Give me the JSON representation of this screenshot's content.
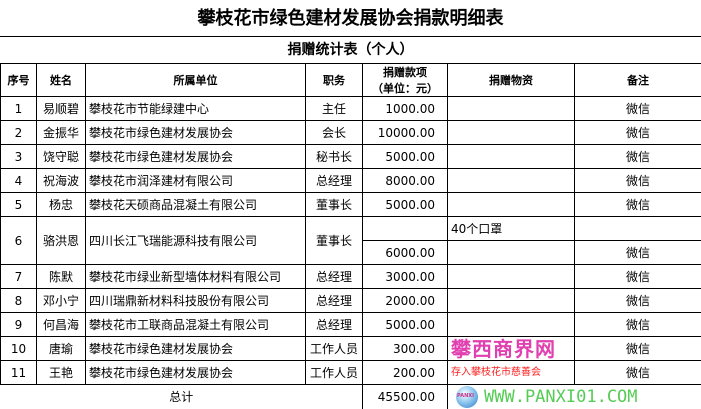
{
  "title": "攀枝花市绿色建材发展协会捐款明细表",
  "subtitle": "捐赠统计表（个人）",
  "headers": {
    "no": "序号",
    "name": "姓名",
    "org": "所属单位",
    "position": "职务",
    "amount": "捐赠款项",
    "amount_unit": "（单位：元）",
    "goods": "捐赠物资",
    "note": "备注"
  },
  "rows": [
    {
      "no": "1",
      "name": "易顺碧",
      "org": "攀枝花市节能绿建中心",
      "position": "主任",
      "amount": "1000.00",
      "goods": "",
      "note": "微信"
    },
    {
      "no": "2",
      "name": "金振华",
      "org": "攀枝花市绿色建材发展协会",
      "position": "会长",
      "amount": "10000.00",
      "goods": "",
      "note": "微信"
    },
    {
      "no": "3",
      "name": "饶守聪",
      "org": "攀枝花市绿色建材发展协会",
      "position": "秘书长",
      "amount": "5000.00",
      "goods": "",
      "note": "微信"
    },
    {
      "no": "4",
      "name": "祝海波",
      "org": "攀枝花市润泽建材有限公司",
      "position": "总经理",
      "amount": "8000.00",
      "goods": "",
      "note": "微信"
    },
    {
      "no": "5",
      "name": "杨忠",
      "org": "攀枝花天硕商品混凝土有限公司",
      "position": "董事长",
      "amount": "5000.00",
      "goods": "",
      "note": "微信"
    },
    {
      "no": "6",
      "name": "骆洪恩",
      "org": "四川长江飞瑞能源科技有限公司",
      "position": "董事长",
      "amount": "6000.00",
      "goods": "40个口罩",
      "note": "微信"
    },
    {
      "no": "7",
      "name": "陈默",
      "org": "攀枝花市绿业新型墙体材料有限公司",
      "position": "总经理",
      "amount": "3000.00",
      "goods": "",
      "note": "微信"
    },
    {
      "no": "8",
      "name": "邓小宁",
      "org": "四川瑞鼎新材料科技股份有限公司",
      "position": "总经理",
      "amount": "2000.00",
      "goods": "",
      "note": "微信"
    },
    {
      "no": "9",
      "name": "何昌海",
      "org": "攀枝花市工联商品混凝土有限公司",
      "position": "总经理",
      "amount": "5000.00",
      "goods": "",
      "note": "微信"
    },
    {
      "no": "10",
      "name": "唐瑜",
      "org": "攀枝花市绿色建材发展协会",
      "position": "工作人员",
      "amount": "300.00",
      "goods": "",
      "note": "微信"
    },
    {
      "no": "11",
      "name": "王艳",
      "org": "攀枝花市绿色建材发展协会",
      "position": "工作人员",
      "amount": "200.00",
      "goods": "",
      "note": "微信"
    }
  ],
  "total": {
    "label": "总计",
    "amount": "45500.00"
  },
  "watermark": {
    "logo": "PANXI",
    "site_name": "攀西商界网",
    "url": "WWW.PANXI01.COM",
    "overlay": "存入攀枝花市慈善会"
  }
}
